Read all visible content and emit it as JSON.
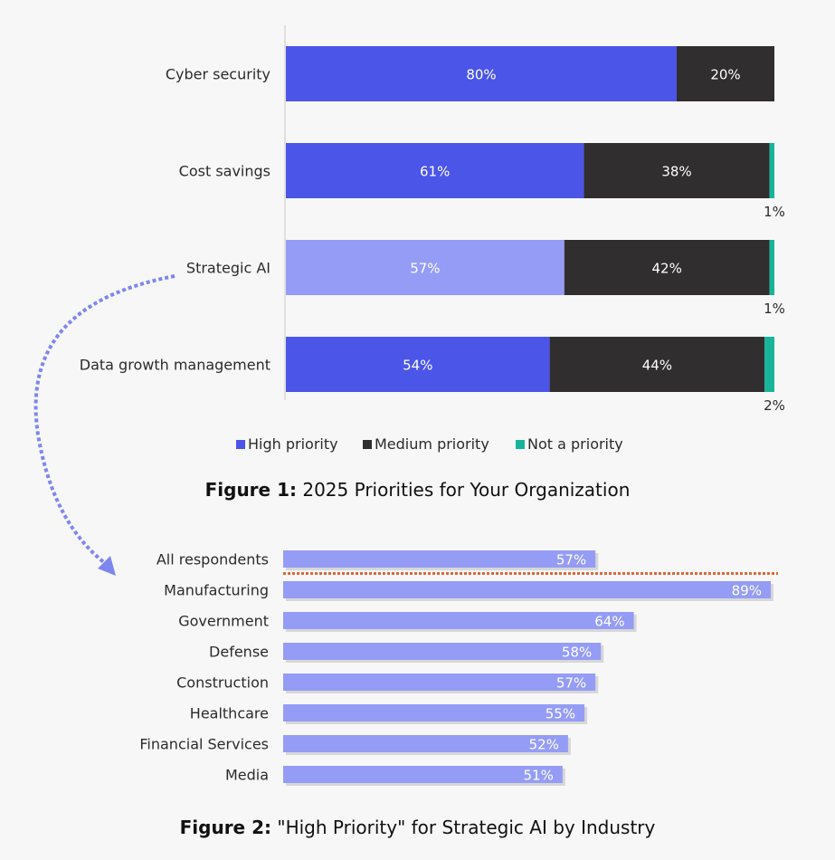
{
  "colors": {
    "high": "#4b55e8",
    "high_highlight": "#959cf5",
    "medium": "#302e2f",
    "not": "#17b49a",
    "industry_bar": "#959cf5",
    "ref_line": "#e0663b",
    "arrow": "#7e86ee"
  },
  "chart_data": [
    {
      "type": "bar",
      "stacked": true,
      "orientation": "horizontal",
      "categories": [
        "Cyber security",
        "Cost savings",
        "Strategic AI",
        "Data growth management"
      ],
      "series": [
        {
          "name": "High priority",
          "values": [
            80,
            61,
            57,
            54
          ]
        },
        {
          "name": "Medium priority",
          "values": [
            20,
            38,
            42,
            44
          ]
        },
        {
          "name": "Not a priority",
          "values": [
            0,
            1,
            1,
            2
          ]
        }
      ],
      "data_labels": [
        [
          "80%",
          "20%",
          ""
        ],
        [
          "61%",
          "38%",
          "1%"
        ],
        [
          "57%",
          "42%",
          "1%"
        ],
        [
          "54%",
          "44%",
          "2%"
        ]
      ],
      "highlight_category": "Strategic AI",
      "xlim": [
        0,
        100
      ],
      "legend": {
        "position": "bottom",
        "entries": [
          "High priority",
          "Medium priority",
          "Not a priority"
        ]
      },
      "caption_bold": "Figure 1:",
      "caption_rest": " 2025 Priorities for Your Organization"
    },
    {
      "type": "bar",
      "orientation": "horizontal",
      "categories": [
        "All respondents",
        "Manufacturing",
        "Government",
        "Defense",
        "Construction",
        "Healthcare",
        "Financial Services",
        "Media"
      ],
      "values": [
        57,
        89,
        64,
        58,
        57,
        55,
        52,
        51
      ],
      "data_labels": [
        "57%",
        "89%",
        "64%",
        "58%",
        "57%",
        "55%",
        "52%",
        "51%"
      ],
      "xlim": [
        0,
        89
      ],
      "reference_separator_after": "All respondents",
      "caption_bold": "Figure 2:",
      "caption_rest": " \"High Priority\" for Strategic AI by Industry"
    }
  ]
}
